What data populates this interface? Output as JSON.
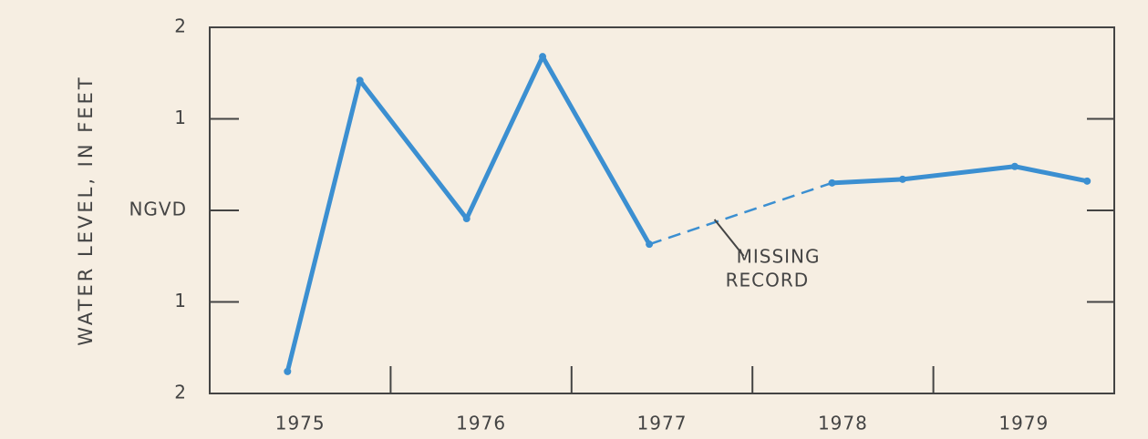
{
  "chart_data": {
    "type": "line",
    "ylabel": "WATER LEVEL, IN FEET",
    "x": [
      1975.43,
      1975.83,
      1976.42,
      1976.84,
      1977.43,
      1978.44,
      1978.83,
      1979.45,
      1979.85
    ],
    "series": [
      {
        "color": "#3b8fd1",
        "values": [
          -1.76,
          1.42,
          -0.09,
          1.68,
          -0.37,
          0.3,
          0.34,
          0.48,
          0.32
        ]
      }
    ],
    "dashed_segments": [
      4
    ],
    "xlim": [
      1975,
      1980
    ],
    "xticks": [
      {
        "value": 1975.5,
        "label": "1975"
      },
      {
        "value": 1976.5,
        "label": "1976"
      },
      {
        "value": 1977.5,
        "label": "1977"
      },
      {
        "value": 1978.5,
        "label": "1978"
      },
      {
        "value": 1979.5,
        "label": "1979"
      }
    ],
    "xtick_marks": [
      1976,
      1977,
      1978,
      1979
    ],
    "ylim": [
      -2,
      2
    ],
    "yticks": [
      2,
      1,
      {
        "value": 0,
        "label": "NGVD"
      },
      {
        "value": -1,
        "label": "1"
      },
      {
        "value": -2,
        "label": "2"
      }
    ],
    "annotation": {
      "lines": [
        "MISSING",
        "RECORD"
      ],
      "x": 1977.75,
      "y": 0.0
    }
  }
}
